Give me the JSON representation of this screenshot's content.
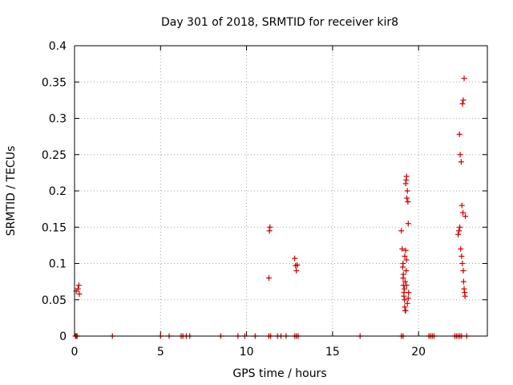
{
  "chart_data": {
    "type": "scatter",
    "title": "Day 301 of 2018, SRMTID for receiver kir8",
    "xlabel": "GPS time / hours",
    "ylabel": "SRMTID / TECUs",
    "xlim": [
      0,
      24
    ],
    "ylim": [
      0,
      0.4
    ],
    "x_ticks": [
      0,
      5,
      10,
      15,
      20
    ],
    "y_ticks": [
      0,
      0.05,
      0.1,
      0.15,
      0.2,
      0.25,
      0.3,
      0.35,
      0.4
    ],
    "grid": true,
    "marker": "+",
    "color": "#cc0000",
    "series": [
      {
        "x": [
          0.1,
          0.2,
          0.25,
          0.28,
          11.3,
          11.33,
          11.36,
          12.8,
          12.85,
          12.9,
          12.95,
          19.0,
          19.05,
          19.08,
          19.1,
          19.12,
          19.15,
          19.18,
          19.2,
          19.22,
          19.25,
          19.28,
          19.3,
          19.32,
          19.35,
          19.38,
          19.4,
          19.2,
          19.25,
          19.3,
          19.28,
          19.22,
          19.18,
          19.15,
          19.35,
          19.4,
          19.42,
          19.1,
          19.12,
          19.25,
          19.3,
          22.3,
          22.35,
          22.4,
          22.45,
          22.5,
          22.55,
          22.6,
          22.62,
          22.65,
          22.68,
          22.7,
          22.72,
          22.58,
          22.52,
          22.48,
          22.42,
          22.38,
          22.55,
          22.6,
          22.65,
          0.05,
          0.1,
          0.15,
          2.2,
          5.0,
          5.5,
          6.2,
          6.3,
          6.5,
          6.7,
          8.5,
          9.5,
          9.9,
          10.5,
          11.3,
          11.4,
          11.8,
          12.0,
          12.3,
          12.8,
          12.9,
          13.0,
          16.6,
          19.0,
          19.1,
          20.6,
          20.7,
          20.8,
          20.9,
          22.1,
          22.2,
          22.3,
          22.4,
          22.5,
          22.8
        ],
        "y": [
          0.062,
          0.065,
          0.07,
          0.058,
          0.08,
          0.145,
          0.15,
          0.107,
          0.097,
          0.09,
          0.098,
          0.145,
          0.12,
          0.095,
          0.08,
          0.07,
          0.06,
          0.05,
          0.04,
          0.035,
          0.21,
          0.215,
          0.22,
          0.19,
          0.2,
          0.185,
          0.155,
          0.11,
          0.118,
          0.105,
          0.09,
          0.075,
          0.065,
          0.055,
          0.045,
          0.052,
          0.06,
          0.1,
          0.085,
          0.035,
          0.07,
          0.14,
          0.145,
          0.15,
          0.12,
          0.11,
          0.1,
          0.09,
          0.075,
          0.065,
          0.06,
          0.055,
          0.165,
          0.17,
          0.18,
          0.24,
          0.25,
          0.278,
          0.32,
          0.325,
          0.355,
          0,
          0,
          0,
          0,
          0,
          0,
          0,
          0,
          0,
          0,
          0,
          0,
          0,
          0,
          0,
          0,
          0,
          0,
          0,
          0,
          0,
          0,
          0,
          0,
          0,
          0,
          0,
          0,
          0,
          0,
          0,
          0,
          0,
          0,
          0
        ]
      }
    ]
  }
}
